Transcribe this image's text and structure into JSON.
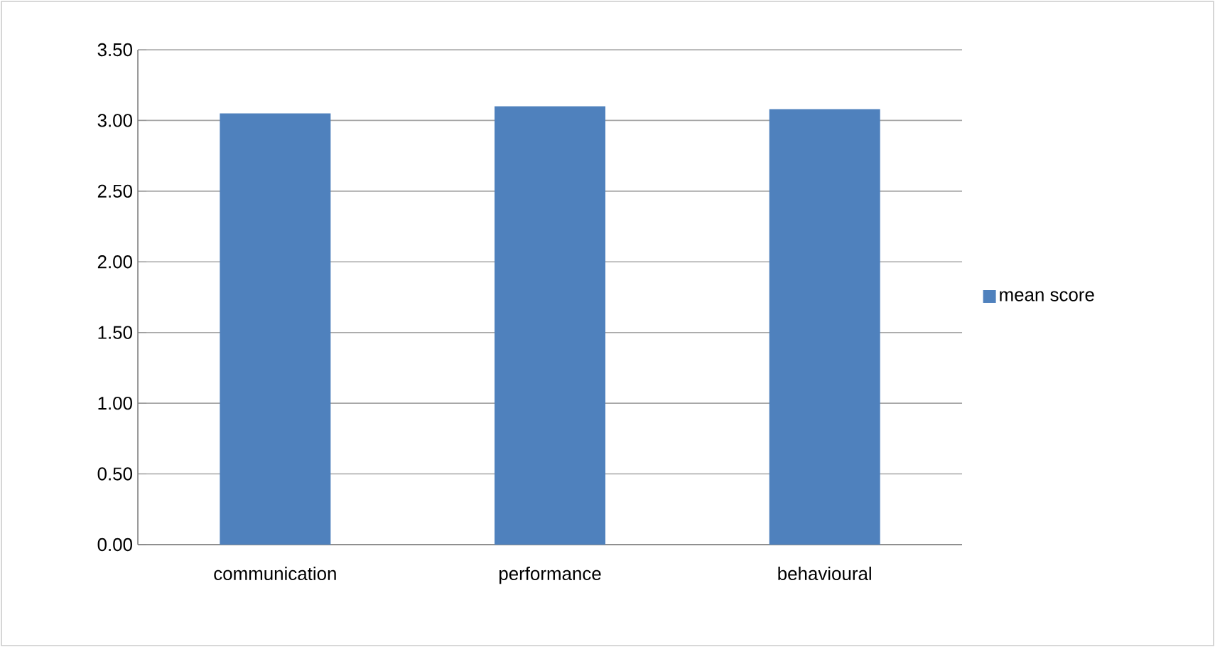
{
  "chart_data": {
    "type": "bar",
    "categories": [
      "communication",
      "performance",
      "behavioural"
    ],
    "series": [
      {
        "name": "mean score",
        "color": "#4f81bd",
        "values": [
          3.05,
          3.1,
          3.08
        ]
      }
    ],
    "ylim": [
      0,
      3.5
    ],
    "yticks": [
      {
        "value": 0,
        "label": "0.00"
      },
      {
        "value": 0.5,
        "label": "0.50"
      },
      {
        "value": 1,
        "label": "1.00"
      },
      {
        "value": 1.5,
        "label": "1.50"
      },
      {
        "value": 2,
        "label": "2.00"
      },
      {
        "value": 2.5,
        "label": "2.50"
      },
      {
        "value": 3,
        "label": "3.00"
      },
      {
        "value": 3.5,
        "label": "3.50"
      }
    ],
    "grid": "y",
    "legend": "right"
  }
}
